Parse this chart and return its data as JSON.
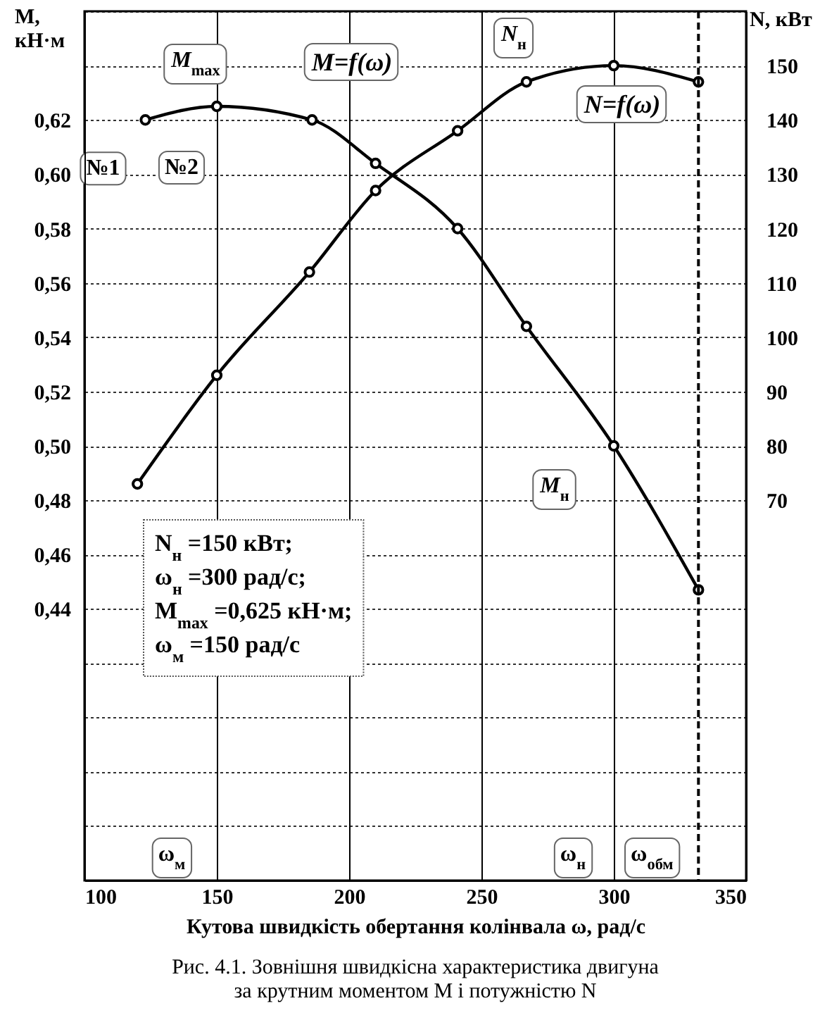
{
  "chart_data": {
    "type": "line",
    "title": "Рис. 4.1. Зовнішня швидкісна характеристика двигуна",
    "subtitle": "за крутним моментом M і потужністю N",
    "xlabel": "Кутова швидкість обертання колінвала ω, рад/с",
    "ylabel": "M, кН·м",
    "y2label": "N, кВт",
    "series": [
      {
        "name": "M=f(ω)",
        "color": "#000000",
        "x": [
          123,
          150,
          186,
          210,
          241,
          267,
          300,
          332
        ],
        "values": [
          0.62,
          0.625,
          0.62,
          0.604,
          0.58,
          0.544,
          0.5,
          0.447
        ]
      },
      {
        "name": "N=f(ω)",
        "color": "#000000",
        "axis": "y2",
        "x": [
          120,
          150,
          185,
          210,
          241,
          267,
          300,
          332
        ],
        "values": [
          73,
          93,
          112,
          127,
          138,
          147,
          150,
          147
        ]
      }
    ],
    "xlim": [
      100,
      350
    ],
    "xticks": [
      100,
      150,
      200,
      250,
      300,
      350
    ],
    "ylim": [
      0.34,
      0.66
    ],
    "yticks": [
      {
        "value": 0.34,
        "label": null
      },
      {
        "value": 0.36,
        "label": null
      },
      {
        "value": 0.38,
        "label": null
      },
      {
        "value": 0.4,
        "label": null
      },
      {
        "value": 0.42,
        "label": null
      },
      {
        "value": 0.44,
        "label": "0,44"
      },
      {
        "value": 0.46,
        "label": "0,46"
      },
      {
        "value": 0.48,
        "label": "0,48"
      },
      {
        "value": 0.5,
        "label": "0,50"
      },
      {
        "value": 0.52,
        "label": "0,52"
      },
      {
        "value": 0.54,
        "label": "0,54"
      },
      {
        "value": 0.56,
        "label": "0,56"
      },
      {
        "value": 0.58,
        "label": "0,58"
      },
      {
        "value": 0.6,
        "label": "0,60"
      },
      {
        "value": 0.62,
        "label": "0,62"
      },
      {
        "value": 0.64,
        "label": null
      },
      {
        "value": 0.66,
        "label": null
      }
    ],
    "y2lim": [
      0,
      160
    ],
    "y2ticks": [
      70,
      80,
      90,
      100,
      110,
      120,
      130,
      140,
      150
    ],
    "ref_lines": [
      {
        "axis": "x",
        "value": 332,
        "label": "ω$_{обм}$",
        "line_style": "dashed",
        "color": "#000000"
      }
    ],
    "annotations": [
      {
        "text": "M$_{max}$",
        "x": 150,
        "y": 0.625
      },
      {
        "text": "№1",
        "x": 123,
        "y": 0.62
      },
      {
        "text": "№2",
        "x": 150,
        "y": 0.625
      },
      "N$_{н}$",
      {
        "text": "M$_{н}$",
        "x": 300,
        "y": 0.5
      },
      "ω$_{м}$",
      "ω$_{н}$",
      "N$_{н}$ =150 кВт;",
      "ω$_{н}$ =300 рад/с;",
      "M$_{max}$ =0,625 кН·м;",
      "ω$_{м}$ =150 рад/с"
    ],
    "grid": true,
    "marker": "circle",
    "line_style": "solid"
  }
}
